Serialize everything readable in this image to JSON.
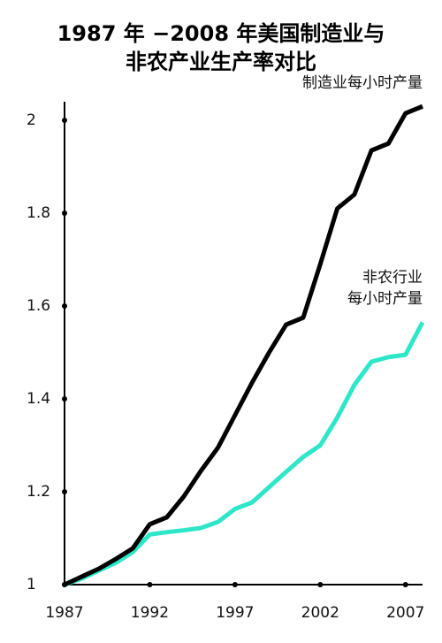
{
  "chart_data": {
    "type": "line",
    "title": "1987 年 −2008 年美国制造业与\n非农产业生产率对比",
    "x": [
      1987,
      1988,
      1989,
      1990,
      1991,
      1992,
      1993,
      1994,
      1995,
      1996,
      1997,
      1998,
      1999,
      2000,
      2001,
      2002,
      2003,
      2004,
      2005,
      2006,
      2007,
      2008
    ],
    "series": [
      {
        "name": "非农行业\n每小时产量",
        "color": "#2ee6c8",
        "values": [
          1.0,
          1.013,
          1.03,
          1.047,
          1.07,
          1.108,
          1.113,
          1.117,
          1.122,
          1.135,
          1.163,
          1.177,
          1.21,
          1.243,
          1.275,
          1.3,
          1.36,
          1.43,
          1.48,
          1.49,
          1.495,
          1.565
        ]
      },
      {
        "name": "制造业每小时产量",
        "color": "#000000",
        "values": [
          1.0,
          1.017,
          1.034,
          1.055,
          1.078,
          1.13,
          1.145,
          1.19,
          1.245,
          1.295,
          1.365,
          1.435,
          1.5,
          1.56,
          1.575,
          1.69,
          1.81,
          1.84,
          1.935,
          1.95,
          2.015,
          2.03
        ]
      }
    ],
    "xlim": [
      1987,
      2008
    ],
    "xticks": [
      1987,
      1992,
      1997,
      2002,
      2007
    ],
    "ylim": [
      1,
      2.04
    ],
    "yticks": [
      1,
      1.2,
      1.4,
      1.6,
      1.8,
      2
    ]
  }
}
